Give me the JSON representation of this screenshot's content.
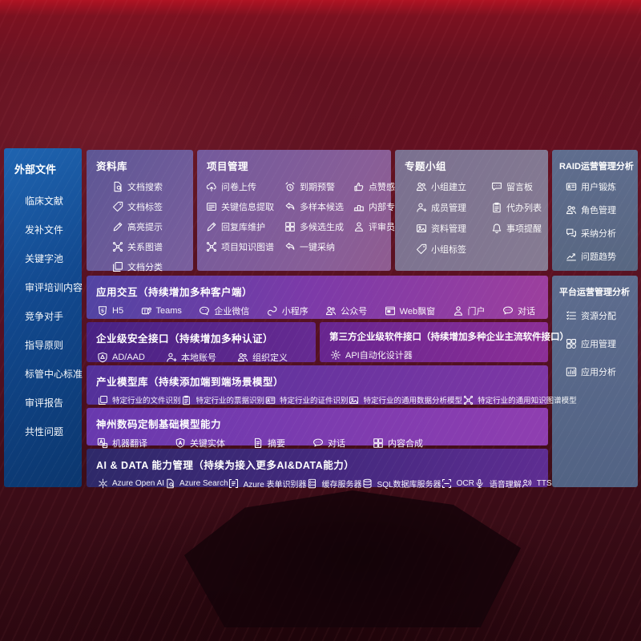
{
  "colors": {
    "background_red": "#5a1120",
    "top_band_red": "#b01323",
    "sidebar_blue": "#14509a",
    "panel_purple": "#715a9a",
    "panel_grey_mauve": "#7f7591",
    "panel_slate": "#5a6a8c",
    "row_violet": "#7c3aa8",
    "row_deep_purple": "#552a8c",
    "row_magenta_purple": "#8c2f97",
    "row_indigo": "#2e2969",
    "text": "#ffffff"
  },
  "sidebar": {
    "title": "外部文件",
    "items": [
      "临床文献",
      "发补文件",
      "关键字池",
      "审评培训内容",
      "竞争对手",
      "指导原则",
      "标管中心标准",
      "审评报告",
      "共性问题"
    ]
  },
  "panels": {
    "library": {
      "title": "资料库",
      "items": [
        {
          "icon": "doc-search",
          "label": "文档搜索"
        },
        {
          "icon": "tag",
          "label": "文档标签"
        },
        {
          "icon": "pen",
          "label": "高亮提示"
        },
        {
          "icon": "graph",
          "label": "关系图谱"
        },
        {
          "icon": "docs",
          "label": "文档分类"
        }
      ]
    },
    "project": {
      "title": "项目管理",
      "items": [
        {
          "icon": "cloud-upload",
          "label": "问卷上传"
        },
        {
          "icon": "alarm",
          "label": "到期预警"
        },
        {
          "icon": "thumb",
          "label": "点赞感谢"
        },
        {
          "icon": "doc-extract",
          "label": "关键信息提取"
        },
        {
          "icon": "reply",
          "label": "多样本候选"
        },
        {
          "icon": "podium",
          "label": "内部专家排名"
        },
        {
          "icon": "pen",
          "label": "回复库维护"
        },
        {
          "icon": "puzzle",
          "label": "多候选生成"
        },
        {
          "icon": "person",
          "label": "评审员画像"
        },
        {
          "icon": "graph",
          "label": "项目知识图谱"
        },
        {
          "icon": "reply",
          "label": "一键采纳"
        }
      ]
    },
    "groups": {
      "title": "专题小组",
      "items": [
        {
          "icon": "people",
          "label": "小组建立"
        },
        {
          "icon": "bbs",
          "label": "留言板"
        },
        {
          "icon": "person-add",
          "label": "成员管理"
        },
        {
          "icon": "clipboard",
          "label": "代办列表"
        },
        {
          "icon": "photo",
          "label": "资料管理"
        },
        {
          "icon": "bell",
          "label": "事项提醒"
        },
        {
          "icon": "tag",
          "label": "小组标签"
        }
      ]
    },
    "raid": {
      "title": "RAID运营管理分析",
      "items": [
        {
          "icon": "id-card",
          "label": "用户锻炼"
        },
        {
          "icon": "people",
          "label": "角色管理"
        },
        {
          "icon": "chat-dots",
          "label": "采纳分析"
        },
        {
          "icon": "trend",
          "label": "问题趋势"
        }
      ]
    },
    "platform": {
      "title": "平台运营管理分析",
      "items": [
        {
          "icon": "list",
          "label": "资源分配"
        },
        {
          "icon": "grid",
          "label": "应用管理"
        },
        {
          "icon": "chart",
          "label": "应用分析"
        }
      ]
    }
  },
  "rows": [
    {
      "title": "应用交互（持续增加多种客户端）",
      "items": [
        {
          "icon": "h5",
          "label": "H5"
        },
        {
          "icon": "teams",
          "label": "Teams"
        },
        {
          "icon": "wechat",
          "label": "企业微信"
        },
        {
          "icon": "mini-program",
          "label": "小程序"
        },
        {
          "icon": "people",
          "label": "公众号"
        },
        {
          "icon": "window",
          "label": "Web飘窗"
        },
        {
          "icon": "person",
          "label": "门户"
        },
        {
          "icon": "chat",
          "label": "对话"
        }
      ]
    },
    {
      "title": "企业级安全接口（持续增加多种认证）",
      "items": [
        {
          "icon": "shield",
          "label": "AD/AAD"
        },
        {
          "icon": "person-add",
          "label": "本地账号"
        },
        {
          "icon": "people",
          "label": "组织定义"
        }
      ]
    },
    {
      "title": "第三方企业级软件接口（持续增加多种企业主流软件接口）",
      "items": [
        {
          "icon": "gear",
          "label": "API自动化设计器"
        }
      ]
    },
    {
      "title": "产业模型库（持续添加端到端场景模型）",
      "items": [
        {
          "icon": "docs",
          "label": "特定行业的文件识别"
        },
        {
          "icon": "clipboard",
          "label": "特定行业的票据识别"
        },
        {
          "icon": "id-card",
          "label": "特定行业的证件识别"
        },
        {
          "icon": "photo",
          "label": "特定行业的通用数据分析模型"
        },
        {
          "icon": "graph",
          "label": "特定行业的通用知识图谱模型"
        }
      ]
    },
    {
      "title": "神州数码定制基础模型能力",
      "items": [
        {
          "icon": "translate",
          "label": "机器翻译"
        },
        {
          "icon": "entity",
          "label": "关键实体"
        },
        {
          "icon": "summary",
          "label": "摘要"
        },
        {
          "icon": "chat",
          "label": "对话"
        },
        {
          "icon": "puzzle",
          "label": "内容合成"
        }
      ]
    },
    {
      "title": "AI & DATA 能力管理（持续为接入更多AI&DATA能力）",
      "items": [
        {
          "icon": "openai",
          "label": "Azure Open AI"
        },
        {
          "icon": "doc-search",
          "label": "Azure Search"
        },
        {
          "icon": "form",
          "label": "Azure 表单识别器"
        },
        {
          "icon": "server",
          "label": "缓存服务器"
        },
        {
          "icon": "db",
          "label": "SQL数据库服务器"
        },
        {
          "icon": "ocr",
          "label": "OCR"
        },
        {
          "icon": "speech",
          "label": "语音理解"
        },
        {
          "icon": "tts",
          "label": "TTS"
        }
      ]
    }
  ]
}
